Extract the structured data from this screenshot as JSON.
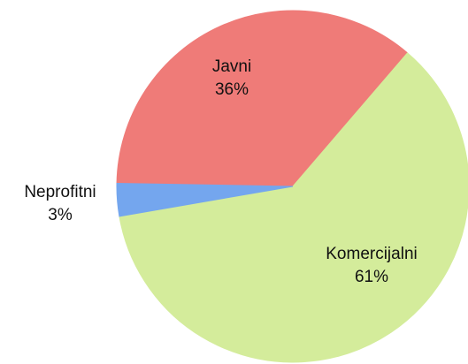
{
  "chart_data": {
    "type": "pie",
    "categories": [
      "Javni",
      "Komercijalni",
      "Neprofitni"
    ],
    "values": [
      36,
      61,
      3
    ],
    "value_labels": [
      "36%",
      "61%",
      "3%"
    ],
    "colors": [
      "#ef7b78",
      "#d4ec9b",
      "#74a6ee"
    ]
  }
}
